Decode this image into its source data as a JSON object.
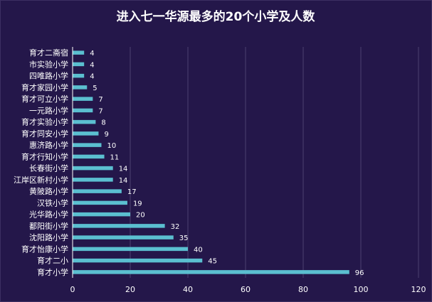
{
  "chart_data": {
    "type": "bar",
    "orientation": "horizontal",
    "title": "进入七一华源最多的20个小学及人数",
    "categories": [
      "育才二斋宿",
      "市实验小学",
      "四唯路小学",
      "育才家园小学",
      "育才可立小学",
      "一元路小学",
      "育才实验小学",
      "育才同安小学",
      "惠济路小学",
      "育才行知小学",
      "长春街小学",
      "江岸区新村小学",
      "黄陂路小学",
      "汉铁小学",
      "光华路小学",
      "鄱阳街小学",
      "沈阳路小学",
      "育才怡康小学",
      "育才二小",
      "育才小学"
    ],
    "values": [
      4,
      4,
      4,
      5,
      7,
      7,
      8,
      9,
      10,
      11,
      14,
      14,
      17,
      19,
      20,
      32,
      35,
      40,
      45,
      96
    ],
    "xticks": [
      "0",
      "20",
      "40",
      "60",
      "80",
      "100",
      "120"
    ],
    "xlim": [
      0,
      120
    ],
    "grid": true,
    "colors": {
      "background": "#24174a",
      "bar": "#5bbfd0",
      "title": "#ffffff",
      "text": "#ffffff",
      "grid": "#4b4270",
      "axis": "#ffffff"
    }
  }
}
